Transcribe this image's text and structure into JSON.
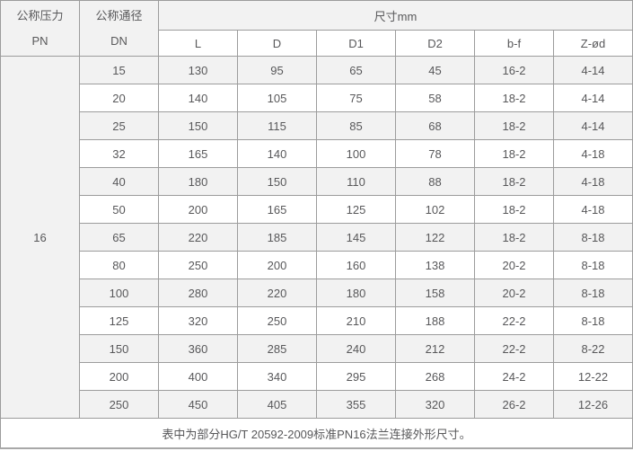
{
  "table": {
    "header": {
      "pressure_cn": "公称压力",
      "pressure_code": "PN",
      "diameter_cn": "公称通径",
      "diameter_code": "DN",
      "size_group": "尺寸mm",
      "dim_columns": [
        "L",
        "D",
        "D1",
        "D2",
        "b-f",
        "Z-ød"
      ]
    },
    "pn_value": "16",
    "rows": [
      {
        "dn": "15",
        "values": [
          "130",
          "95",
          "65",
          "45",
          "16-2",
          "4-14"
        ]
      },
      {
        "dn": "20",
        "values": [
          "140",
          "105",
          "75",
          "58",
          "18-2",
          "4-14"
        ]
      },
      {
        "dn": "25",
        "values": [
          "150",
          "115",
          "85",
          "68",
          "18-2",
          "4-14"
        ]
      },
      {
        "dn": "32",
        "values": [
          "165",
          "140",
          "100",
          "78",
          "18-2",
          "4-18"
        ]
      },
      {
        "dn": "40",
        "values": [
          "180",
          "150",
          "110",
          "88",
          "18-2",
          "4-18"
        ]
      },
      {
        "dn": "50",
        "values": [
          "200",
          "165",
          "125",
          "102",
          "18-2",
          "4-18"
        ]
      },
      {
        "dn": "65",
        "values": [
          "220",
          "185",
          "145",
          "122",
          "18-2",
          "8-18"
        ]
      },
      {
        "dn": "80",
        "values": [
          "250",
          "200",
          "160",
          "138",
          "20-2",
          "8-18"
        ]
      },
      {
        "dn": "100",
        "values": [
          "280",
          "220",
          "180",
          "158",
          "20-2",
          "8-18"
        ]
      },
      {
        "dn": "125",
        "values": [
          "320",
          "250",
          "210",
          "188",
          "22-2",
          "8-18"
        ]
      },
      {
        "dn": "150",
        "values": [
          "360",
          "285",
          "240",
          "212",
          "22-2",
          "8-22"
        ]
      },
      {
        "dn": "200",
        "values": [
          "400",
          "340",
          "295",
          "268",
          "24-2",
          "12-22"
        ]
      },
      {
        "dn": "250",
        "values": [
          "450",
          "405",
          "355",
          "320",
          "26-2",
          "12-26"
        ]
      }
    ],
    "footer_note": "表中为部分HG/T 20592-2009标准PN16法兰连接外形尺寸。"
  },
  "colors": {
    "stripe_background": "#f2f2f2",
    "border": "#9c9c9c",
    "text": "#58585a"
  }
}
